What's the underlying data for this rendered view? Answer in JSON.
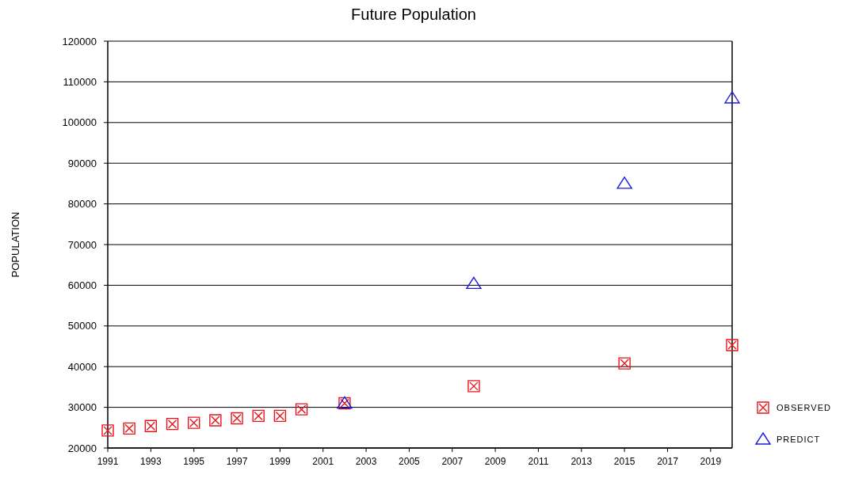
{
  "chart_data": {
    "type": "scatter",
    "title": "Future Population",
    "ylabel": "POPULATION",
    "xlim": [
      1991,
      2020
    ],
    "xticks": [
      1991,
      1993,
      1995,
      1997,
      1999,
      2001,
      2003,
      2005,
      2007,
      2009,
      2011,
      2013,
      2015,
      2017,
      2019
    ],
    "ylim": [
      20000,
      120000
    ],
    "yticks": [
      20000,
      30000,
      40000,
      50000,
      60000,
      70000,
      80000,
      90000,
      100000,
      110000,
      120000
    ],
    "grid": "y",
    "legend": "bottom right",
    "series": [
      {
        "name": "OBSERVED",
        "color": "#e8141c",
        "marker": "cross",
        "x": [
          1991,
          1992,
          1993,
          1994,
          1995,
          1996,
          1997,
          1998,
          1999,
          2000,
          2002,
          2008,
          2015,
          2020
        ],
        "values": [
          24300,
          24800,
          25400,
          25900,
          26200,
          26800,
          27300,
          27900,
          27900,
          29500,
          31000,
          35200,
          40800,
          45300
        ]
      },
      {
        "name": "PREDICT",
        "color": "#1a1adc",
        "marker": "triangle",
        "x": [
          2002,
          2008,
          2015,
          2020
        ],
        "values": [
          31000,
          60400,
          85000,
          106000
        ]
      }
    ]
  }
}
